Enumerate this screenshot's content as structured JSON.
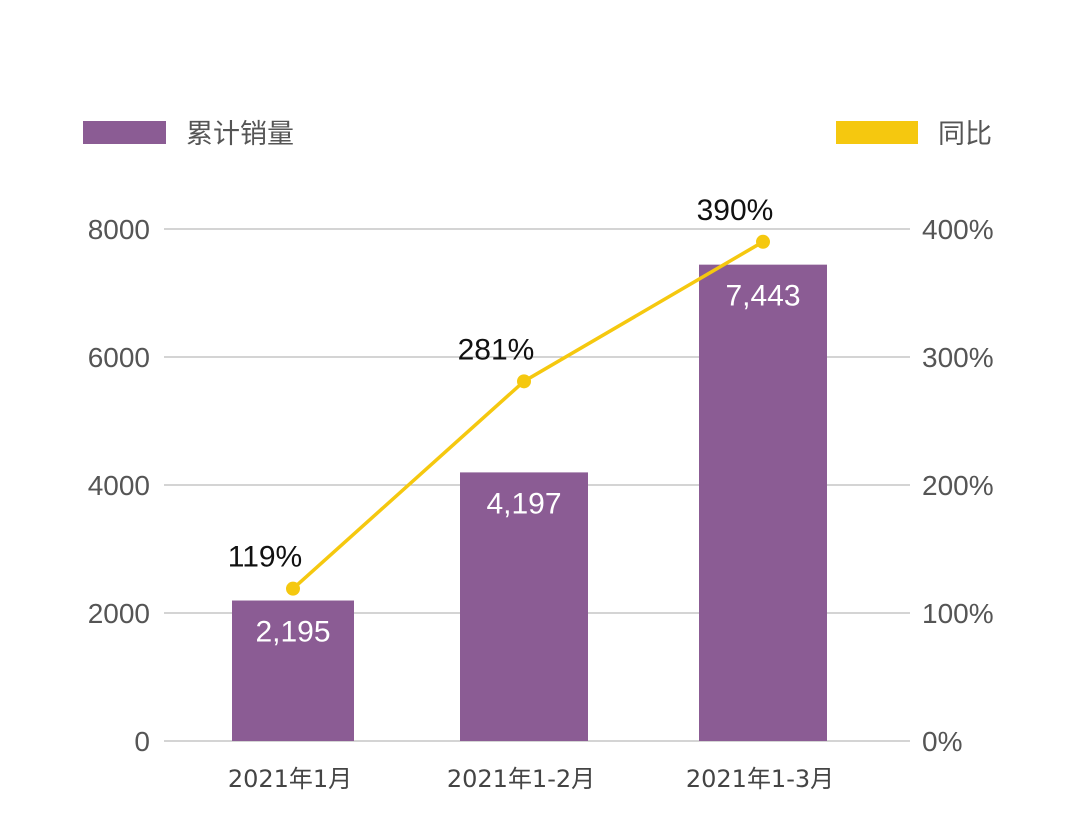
{
  "chart_data": {
    "type": "bar",
    "categories": [
      "2021年1月",
      "2021年1-2月",
      "2021年1-3月"
    ],
    "series": [
      {
        "name": "累计销量",
        "type": "bar",
        "axis": "left",
        "values": [
          2195,
          4197,
          7443
        ],
        "labels": [
          "2,195",
          "4,197",
          "7,443"
        ],
        "color": "#8B5C94"
      },
      {
        "name": "同比",
        "type": "line",
        "axis": "right",
        "values": [
          119,
          281,
          390
        ],
        "labels": [
          "119%",
          "281%",
          "390%"
        ],
        "color": "#F5C80F"
      }
    ],
    "y_left": {
      "min": 0,
      "max": 8000,
      "ticks": [
        "0",
        "2000",
        "4000",
        "6000",
        "8000"
      ]
    },
    "y_right": {
      "min": 0,
      "max": 400,
      "ticks": [
        "0%",
        "100%",
        "200%",
        "300%",
        "400%"
      ]
    },
    "grid": true,
    "legend": "top",
    "gridColor": "#BBBBBB"
  }
}
